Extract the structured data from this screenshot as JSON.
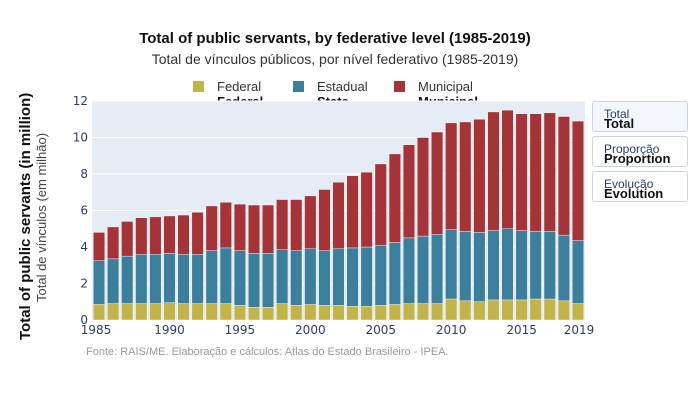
{
  "chart_data": {
    "type": "bar",
    "stacked": true,
    "title": "Total of public servants, by federative level (1985-2019)",
    "subtitle": "Total de vínculos públicos, por nível federativo (1985-2019)",
    "ylabel_en": "Total of public servants (in million)",
    "ylabel_pt": "Total de vínculos (em milhão)",
    "source": "Fonte: RAIS/ME. Elaboração e cálculos: Atlas do Estado Brasileiro - IPEA.",
    "x": [
      1985,
      1986,
      1987,
      1988,
      1989,
      1990,
      1991,
      1992,
      1993,
      1994,
      1995,
      1996,
      1997,
      1998,
      1999,
      2000,
      2001,
      2002,
      2003,
      2004,
      2005,
      2006,
      2007,
      2008,
      2009,
      2010,
      2011,
      2012,
      2013,
      2014,
      2015,
      2016,
      2017,
      2018,
      2019
    ],
    "x_ticks": [
      "1985",
      "1990",
      "1995",
      "2000",
      "2005",
      "2010",
      "2015",
      "2019"
    ],
    "y_ticks": [
      "0",
      "2",
      "4",
      "6",
      "8",
      "10",
      "12"
    ],
    "ylim": [
      0,
      12
    ],
    "grid": true,
    "legend_position": "top",
    "series": [
      {
        "name": "Federal",
        "name_en": "Federal",
        "color": "#c2b447",
        "values": [
          0.85,
          0.9,
          0.9,
          0.9,
          0.9,
          0.95,
          0.9,
          0.9,
          0.9,
          0.9,
          0.8,
          0.7,
          0.7,
          0.9,
          0.8,
          0.85,
          0.8,
          0.8,
          0.75,
          0.75,
          0.8,
          0.85,
          0.9,
          0.9,
          0.9,
          1.15,
          1.05,
          1.0,
          1.1,
          1.1,
          1.1,
          1.15,
          1.15,
          1.05,
          0.9
        ]
      },
      {
        "name": "Estadual",
        "name_en": "State",
        "color": "#3c7f9c",
        "values": [
          2.4,
          2.45,
          2.6,
          2.7,
          2.7,
          2.7,
          2.7,
          2.7,
          2.9,
          3.05,
          3.0,
          2.95,
          2.95,
          2.95,
          3.0,
          3.05,
          3.0,
          3.1,
          3.2,
          3.25,
          3.3,
          3.4,
          3.6,
          3.7,
          3.8,
          3.8,
          3.8,
          3.8,
          3.8,
          3.9,
          3.8,
          3.7,
          3.7,
          3.6,
          3.45
        ]
      },
      {
        "name": "Municipal",
        "name_en": "Municipal",
        "color": "#a43437",
        "values": [
          1.55,
          1.75,
          1.9,
          2.0,
          2.05,
          2.05,
          2.15,
          2.3,
          2.45,
          2.5,
          2.55,
          2.65,
          2.65,
          2.75,
          2.8,
          2.9,
          3.35,
          3.65,
          3.95,
          4.1,
          4.45,
          4.85,
          5.1,
          5.4,
          5.6,
          5.85,
          6.0,
          6.2,
          6.5,
          6.5,
          6.4,
          6.45,
          6.5,
          6.5,
          6.55
        ]
      }
    ]
  },
  "buttons": [
    {
      "label_pt": "Total",
      "label_en": "Total"
    },
    {
      "label_pt": "Proporção",
      "label_en": "Proportion"
    },
    {
      "label_pt": "Evolução",
      "label_en": "Evolution"
    }
  ]
}
